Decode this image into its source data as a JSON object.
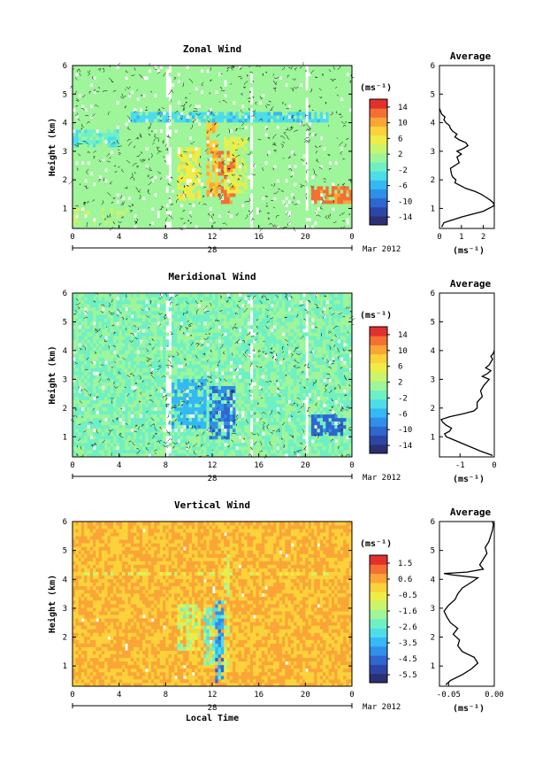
{
  "figure": {
    "xlabel": "Local Time",
    "date_label": "Mar 2012",
    "day_label": "28",
    "unit_label": "(ms⁻¹)",
    "ylabel": "Height (km)",
    "average_title": "Average"
  },
  "colors": {
    "background": "#ffffff",
    "palette": [
      "#2b2f74",
      "#2d46a6",
      "#2f66cf",
      "#2f8fe9",
      "#35b8f4",
      "#4ddde9",
      "#6ff0c4",
      "#9ef59a",
      "#c9f46d",
      "#ecee47",
      "#fbd23a",
      "#fba537",
      "#f36f33",
      "#e2302d"
    ]
  },
  "chart_data": [
    {
      "type": "heatmap",
      "title": "Zonal Wind",
      "xlabel": "Local Time",
      "ylabel": "Height (km)",
      "xlim": [
        0,
        24
      ],
      "ylim": [
        0.3,
        6
      ],
      "x_ticks": [
        "0",
        "4",
        "8",
        "12",
        "16",
        "20",
        "0"
      ],
      "y_ticks": [
        "1",
        "2",
        "3",
        "4",
        "5",
        "6"
      ],
      "colorbar": {
        "label": "(ms⁻¹)",
        "min": -16,
        "max": 16,
        "ticks": [
          "14",
          "10",
          "6",
          "2",
          "-2",
          "-6",
          "-10",
          "-14"
        ]
      },
      "background_value": 1,
      "gap_columns_hours": [
        [
          8.0,
          8.6
        ],
        [
          15.2,
          15.5
        ],
        [
          20.0,
          20.2
        ],
        [
          20.9,
          21.1
        ]
      ],
      "features": [
        {
          "x": [
            9,
            11
          ],
          "y": [
            1.3,
            3.1
          ],
          "value": 6
        },
        {
          "x": [
            11.4,
            12.6
          ],
          "y": [
            1.4,
            4.0
          ],
          "value": 9
        },
        {
          "x": [
            12.6,
            14.0
          ],
          "y": [
            1.2,
            3.0
          ],
          "value": 12
        },
        {
          "x": [
            13.0,
            15.0
          ],
          "y": [
            1.6,
            3.5
          ],
          "value": 5
        },
        {
          "x": [
            5,
            22
          ],
          "y": [
            4.0,
            4.35
          ],
          "value": -4
        },
        {
          "x": [
            0,
            4
          ],
          "y": [
            3.2,
            3.8
          ],
          "value": -2
        },
        {
          "x": [
            20.5,
            24
          ],
          "y": [
            1.2,
            1.8
          ],
          "value": 12
        },
        {
          "x": [
            0,
            5
          ],
          "y": [
            0.4,
            1.0
          ],
          "value": 2
        }
      ],
      "profile": {
        "title": "Average",
        "xlabel": "(ms⁻¹)",
        "xlim": [
          0,
          2.5
        ],
        "x_ticks": [
          "0",
          "1",
          "2"
        ],
        "y_ticks": [
          "1",
          "2",
          "3",
          "4",
          "5",
          "6"
        ],
        "height": [
          0.35,
          0.5,
          0.7,
          0.9,
          1.1,
          1.2,
          1.3,
          1.4,
          1.5,
          1.6,
          1.7,
          1.8,
          1.9,
          2.0,
          2.1,
          2.2,
          2.4,
          2.6,
          2.8,
          2.9,
          3.0,
          3.1,
          3.2,
          3.3,
          3.4,
          3.5,
          3.6,
          3.7,
          3.8,
          3.9,
          4.0,
          4.1,
          4.2,
          4.3,
          4.4,
          4.5
        ],
        "value": [
          0.1,
          0.2,
          1.0,
          2.0,
          2.5,
          2.45,
          2.3,
          2.1,
          1.9,
          1.6,
          1.2,
          0.95,
          0.7,
          0.75,
          0.6,
          0.55,
          0.5,
          0.9,
          0.8,
          1.0,
          0.8,
          1.1,
          1.3,
          1.2,
          0.9,
          0.7,
          0.8,
          0.6,
          0.5,
          0.45,
          0.3,
          0.2,
          0.25,
          0.1,
          0.05,
          0.0
        ]
      }
    },
    {
      "type": "heatmap",
      "title": "Meridional Wind",
      "xlabel": "Local Time",
      "ylabel": "Height (km)",
      "xlim": [
        0,
        24
      ],
      "ylim": [
        0.3,
        6
      ],
      "x_ticks": [
        "0",
        "4",
        "8",
        "12",
        "16",
        "20",
        "0"
      ],
      "y_ticks": [
        "1",
        "2",
        "3",
        "4",
        "5",
        "6"
      ],
      "colorbar": {
        "label": "(ms⁻¹)",
        "min": -16,
        "max": 16,
        "ticks": [
          "14",
          "10",
          "6",
          "2",
          "-2",
          "-6",
          "-10",
          "-14"
        ]
      },
      "background_value": 0,
      "gap_columns_hours": [
        [
          8.0,
          8.6
        ],
        [
          15.2,
          15.5
        ],
        [
          20.0,
          20.2
        ],
        [
          20.9,
          21.1
        ]
      ],
      "features": [
        {
          "x": [
            8.5,
            11.5
          ],
          "y": [
            1.3,
            3.0
          ],
          "value": -6
        },
        {
          "x": [
            11.8,
            14.0
          ],
          "y": [
            0.9,
            2.8
          ],
          "value": -9
        },
        {
          "x": [
            20.5,
            23.5
          ],
          "y": [
            1.1,
            1.8
          ],
          "value": -10
        }
      ],
      "profile": {
        "title": "Average",
        "xlabel": "(ms⁻¹)",
        "xlim": [
          -1.6,
          0
        ],
        "x_ticks": [
          "-1",
          "0"
        ],
        "y_ticks": [
          "1",
          "2",
          "3",
          "4",
          "5",
          "6"
        ],
        "height": [
          0.35,
          0.5,
          0.7,
          0.9,
          1.0,
          1.1,
          1.2,
          1.3,
          1.4,
          1.5,
          1.6,
          1.7,
          1.8,
          1.9,
          2.0,
          2.2,
          2.4,
          2.6,
          2.8,
          3.0,
          3.1,
          3.2,
          3.3,
          3.4,
          3.5,
          3.6,
          3.7,
          3.8,
          3.9,
          4.0
        ],
        "value": [
          -0.05,
          -0.4,
          -0.8,
          -1.2,
          -1.4,
          -1.45,
          -1.3,
          -1.25,
          -1.4,
          -1.5,
          -1.55,
          -1.3,
          -0.9,
          -0.6,
          -0.5,
          -0.5,
          -0.35,
          -0.4,
          -0.3,
          -0.15,
          -0.35,
          -0.2,
          -0.1,
          -0.25,
          -0.15,
          -0.1,
          -0.05,
          -0.1,
          -0.03,
          0.0
        ]
      }
    },
    {
      "type": "heatmap",
      "title": "Vertical Wind",
      "xlabel": "Local Time",
      "ylabel": "Height (km)",
      "xlim": [
        0,
        24
      ],
      "ylim": [
        0.3,
        6
      ],
      "x_ticks": [
        "0",
        "4",
        "8",
        "12",
        "16",
        "20",
        "0"
      ],
      "y_ticks": [
        "1",
        "2",
        "3",
        "4",
        "5",
        "6"
      ],
      "colorbar": {
        "label": "(ms⁻¹)",
        "min": -6,
        "max": 2,
        "ticks": [
          "1.5",
          "0.6",
          "-0.5",
          "-1.6",
          "-2.6",
          "-3.5",
          "-4.5",
          "-5.5"
        ]
      },
      "background_value": 0.3,
      "gap_columns_hours": [],
      "features": [
        {
          "x": [
            9,
            11
          ],
          "y": [
            1.5,
            3.2
          ],
          "value": -1.2
        },
        {
          "x": [
            11.2,
            12.3
          ],
          "y": [
            1.0,
            3.0
          ],
          "value": -2.0
        },
        {
          "x": [
            12.3,
            12.9
          ],
          "y": [
            0.4,
            3.3
          ],
          "value": -3.5
        },
        {
          "x": [
            12.9,
            13.6
          ],
          "y": [
            0.6,
            5.0
          ],
          "value": -0.6
        },
        {
          "x": [
            1.0,
            22.0
          ],
          "y": [
            4.1,
            4.3
          ],
          "value": -0.4
        }
      ],
      "profile": {
        "title": "Average",
        "xlabel": "(ms⁻¹)",
        "xlim": [
          -0.06,
          0.0
        ],
        "x_ticks": [
          "-0.05",
          "0.00"
        ],
        "y_ticks": [
          "1",
          "2",
          "3",
          "4",
          "5",
          "6"
        ],
        "height": [
          0.35,
          0.5,
          0.7,
          0.9,
          1.1,
          1.3,
          1.5,
          1.7,
          1.9,
          2.1,
          2.3,
          2.5,
          2.7,
          2.9,
          3.1,
          3.3,
          3.5,
          3.7,
          3.9,
          4.05,
          4.15,
          4.2,
          4.25,
          4.35,
          4.5,
          4.7,
          4.9,
          5.1,
          5.3,
          5.5,
          5.7,
          5.9,
          6.0
        ],
        "value": [
          -0.053,
          -0.048,
          -0.035,
          -0.025,
          -0.018,
          -0.022,
          -0.035,
          -0.04,
          -0.038,
          -0.045,
          -0.04,
          -0.048,
          -0.052,
          -0.055,
          -0.05,
          -0.043,
          -0.04,
          -0.035,
          -0.025,
          -0.018,
          -0.045,
          -0.055,
          -0.03,
          -0.012,
          -0.016,
          -0.012,
          -0.008,
          -0.01,
          -0.006,
          -0.004,
          -0.002,
          -0.001,
          -0.002
        ]
      }
    }
  ]
}
